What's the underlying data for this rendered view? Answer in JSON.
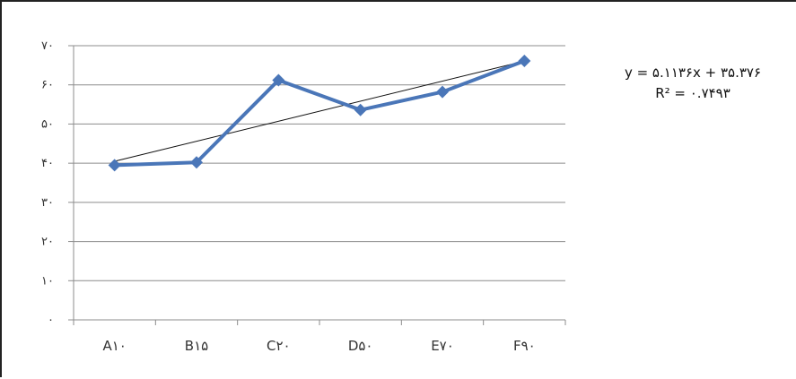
{
  "chart_data": {
    "type": "line",
    "categories": [
      "A۱۰",
      "B۱۵",
      "C۲۰",
      "D۵۰",
      "E۷۰",
      "F۹۰"
    ],
    "series": [
      {
        "values": [
          39.5,
          40.2,
          61.2,
          53.6,
          58.2,
          66.1
        ],
        "color": "#4a76b8",
        "marker": "diamond"
      }
    ],
    "trendline": {
      "type": "linear",
      "slope": 5.1136,
      "intercept": 35.376,
      "color": "#111111"
    },
    "ylim": [
      0,
      70
    ],
    "yticks": [
      0,
      10,
      20,
      30,
      40,
      50,
      60,
      70
    ],
    "ytick_labels": [
      "۰",
      "۱۰",
      "۲۰",
      "۳۰",
      "۴۰",
      "۵۰",
      "۶۰",
      "۷۰"
    ],
    "grid": true,
    "annotations": {
      "equation": "y = ۵.۱۱۳۶x + ۳۵.۳۷۶",
      "r_squared": "R² = ۰.۷۴۹۳"
    },
    "title": "",
    "xlabel": "",
    "ylabel": ""
  }
}
